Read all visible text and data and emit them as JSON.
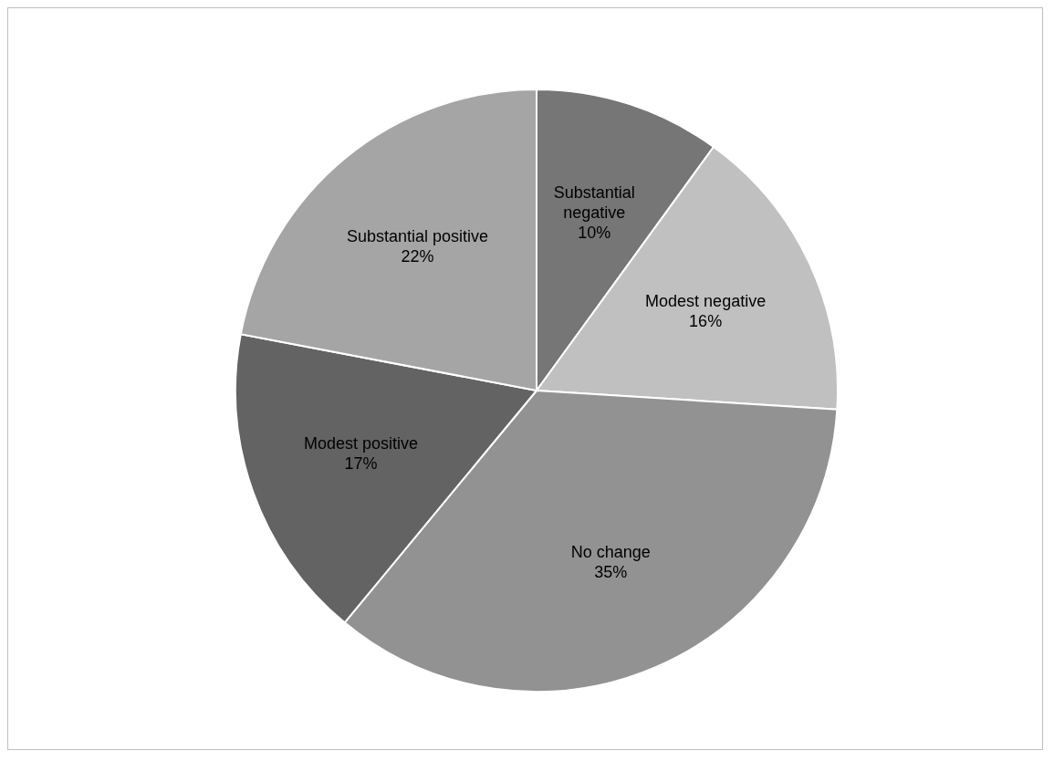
{
  "chart_data": {
    "type": "pie",
    "categories": [
      "Substantial negative",
      "Modest negative",
      "No change",
      "Modest positive",
      "Substantial positive"
    ],
    "values": [
      10,
      16,
      35,
      17,
      22
    ],
    "value_labels": [
      "10%",
      "16%",
      "35%",
      "17%",
      "22%"
    ],
    "colors": [
      "#767676",
      "#c0c0c0",
      "#929292",
      "#636363",
      "#a5a5a5"
    ]
  }
}
